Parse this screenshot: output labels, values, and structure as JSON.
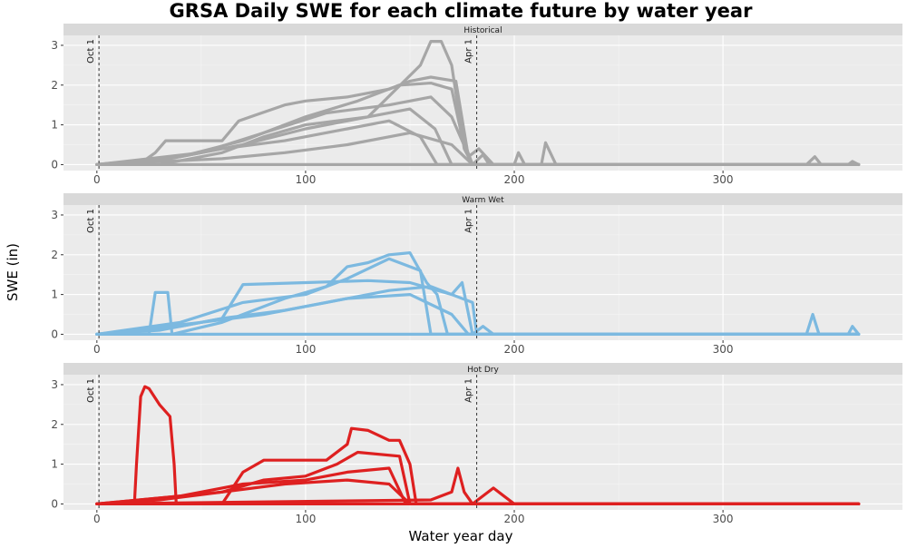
{
  "chart_data": {
    "type": "line",
    "title": "GRSA Daily SWE for each climate future by water year",
    "xlabel": "Water year day",
    "ylabel": "SWE (in)",
    "xlim": [
      -16,
      386
    ],
    "ylim": [
      -0.15,
      3.25
    ],
    "x_ticks": [
      0,
      100,
      200,
      300
    ],
    "y_ticks": [
      0,
      1,
      2,
      3
    ],
    "grid": true,
    "reference_lines": [
      {
        "x": 1,
        "label": "Oct 1"
      },
      {
        "x": 182,
        "label": "Apr 1"
      }
    ],
    "panels": [
      {
        "label": "Historical",
        "color": "#a6a6a6",
        "series": [
          {
            "x": [
              0,
              20,
              28,
              33,
              40,
              60,
              68,
              90,
              100,
              120,
              140,
              150,
              160,
              172,
              178,
              183,
              190,
              200,
              365
            ],
            "y": [
              0,
              0,
              0.3,
              0.6,
              0.6,
              0.6,
              1.1,
              1.5,
              1.6,
              1.7,
              1.9,
              2.1,
              2.2,
              2.1,
              0.2,
              0.4,
              0,
              0,
              0
            ]
          },
          {
            "x": [
              0,
              30,
              60,
              80,
              100,
              130,
              155,
              160,
              165,
              170,
              176,
              180,
              365
            ],
            "y": [
              0,
              0,
              0.3,
              0.7,
              1.0,
              1.2,
              2.5,
              3.1,
              3.1,
              2.5,
              0.4,
              0,
              0
            ]
          },
          {
            "x": [
              0,
              40,
              70,
              100,
              125,
              145,
              160,
              170,
              175,
              180,
              365
            ],
            "y": [
              0,
              0.2,
              0.6,
              1.2,
              1.6,
              2.0,
              2.05,
              1.9,
              0.7,
              0,
              0
            ]
          },
          {
            "x": [
              0,
              50,
              80,
              110,
              140,
              160,
              170,
              180,
              365
            ],
            "y": [
              0,
              0.3,
              0.8,
              1.3,
              1.5,
              1.7,
              1.2,
              0,
              0
            ]
          },
          {
            "x": [
              0,
              40,
              70,
              100,
              130,
              150,
              162,
              170,
              365
            ],
            "y": [
              0,
              0.2,
              0.5,
              0.9,
              1.2,
              1.4,
              0.9,
              0,
              0
            ]
          },
          {
            "x": [
              0,
              30,
              60,
              90,
              120,
              140,
              155,
              163,
              365
            ],
            "y": [
              0,
              0.1,
              0.4,
              0.6,
              0.9,
              1.1,
              0.7,
              0,
              0
            ]
          },
          {
            "x": [
              0,
              60,
              90,
              120,
              150,
              170,
              180,
              365
            ],
            "y": [
              0,
              0.15,
              0.3,
              0.5,
              0.8,
              0.5,
              0,
              0
            ]
          },
          {
            "x": [
              0,
              180,
              185,
              188,
              200,
              202,
              205,
              213,
              215,
              220,
              340,
              344,
              347,
              360,
              362,
              365
            ],
            "y": [
              0,
              0,
              0.25,
              0,
              0,
              0.3,
              0,
              0,
              0.55,
              0,
              0,
              0.2,
              0,
              0,
              0.08,
              0
            ]
          }
        ]
      },
      {
        "label": "Warm Wet",
        "color": "#7cb9e0",
        "series": [
          {
            "x": [
              0,
              25,
              28,
              30,
              34,
              36,
              60,
              90,
              110,
              120,
              130,
              140,
              150,
              158,
              163,
              168,
              365
            ],
            "y": [
              0,
              0,
              1.05,
              1.05,
              1.05,
              0,
              0.3,
              0.9,
              1.2,
              1.7,
              1.8,
              2.0,
              2.05,
              1.3,
              1.0,
              0,
              0
            ]
          },
          {
            "x": [
              0,
              40,
              70,
              100,
              120,
              140,
              155,
              160,
              365
            ],
            "y": [
              0,
              0.3,
              0.8,
              1.0,
              1.4,
              1.9,
              1.6,
              0,
              0
            ]
          },
          {
            "x": [
              0,
              40,
              60,
              70,
              100,
              130,
              150,
              170,
              175,
              180,
              365
            ],
            "y": [
              0,
              0.2,
              0.4,
              1.25,
              1.3,
              1.35,
              1.3,
              1.0,
              1.3,
              0,
              0
            ]
          },
          {
            "x": [
              0,
              50,
              80,
              110,
              140,
              160,
              180,
              182,
              365
            ],
            "y": [
              0,
              0.3,
              0.5,
              0.8,
              1.1,
              1.2,
              0.8,
              0,
              0
            ]
          },
          {
            "x": [
              0,
              30,
              60,
              90,
              120,
              150,
              170,
              178,
              365
            ],
            "y": [
              0,
              0.1,
              0.4,
              0.6,
              0.9,
              1.0,
              0.5,
              0,
              0
            ]
          },
          {
            "x": [
              0,
              180,
              185,
              190,
              195,
              340,
              343,
              346,
              360,
              362,
              365
            ],
            "y": [
              0,
              0,
              0.2,
              0,
              0,
              0,
              0.5,
              0,
              0,
              0.2,
              0
            ]
          }
        ]
      },
      {
        "label": "Hot Dry",
        "color": "#de2020",
        "series": [
          {
            "x": [
              0,
              18,
              19,
              21,
              23,
              25,
              30,
              35,
              37,
              38,
              40,
              365
            ],
            "y": [
              0,
              0,
              1.0,
              2.7,
              2.95,
              2.9,
              2.5,
              2.2,
              1.0,
              0,
              0,
              0
            ]
          },
          {
            "x": [
              0,
              60,
              70,
              80,
              100,
              110,
              120,
              122,
              130,
              140,
              145,
              150,
              153,
              365
            ],
            "y": [
              0,
              0,
              0.8,
              1.1,
              1.1,
              1.1,
              1.5,
              1.9,
              1.85,
              1.6,
              1.6,
              1.0,
              0,
              0
            ]
          },
          {
            "x": [
              0,
              60,
              80,
              100,
              115,
              125,
              145,
              150,
              365
            ],
            "y": [
              0,
              0.3,
              0.6,
              0.7,
              1.0,
              1.3,
              1.2,
              0,
              0
            ]
          },
          {
            "x": [
              0,
              40,
              70,
              100,
              120,
              140,
              148,
              365
            ],
            "y": [
              0,
              0.2,
              0.5,
              0.6,
              0.8,
              0.9,
              0,
              0
            ]
          },
          {
            "x": [
              0,
              30,
              60,
              90,
              120,
              140,
              150,
              365
            ],
            "y": [
              0,
              0.1,
              0.3,
              0.5,
              0.6,
              0.5,
              0,
              0
            ]
          },
          {
            "x": [
              0,
              160,
              170,
              173,
              176,
              180,
              190,
              195,
              200,
              365
            ],
            "y": [
              0,
              0.1,
              0.3,
              0.9,
              0.3,
              0,
              0.4,
              0.2,
              0,
              0
            ]
          }
        ]
      }
    ]
  }
}
